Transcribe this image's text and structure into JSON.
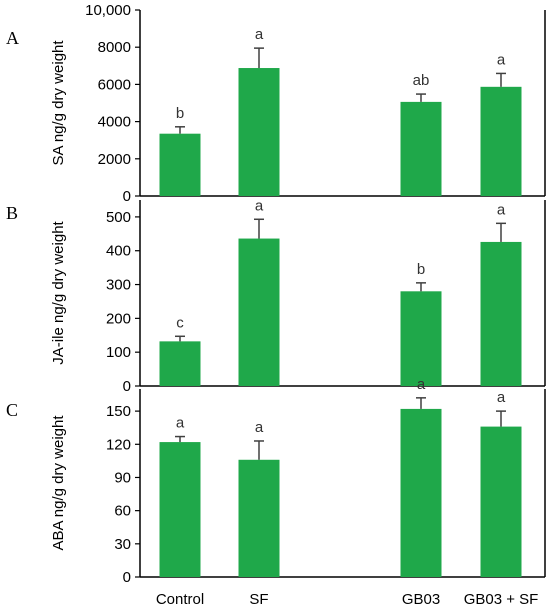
{
  "colors": {
    "bar": "#1fa84a",
    "error": "#404040",
    "axis": "#000000"
  },
  "categories": [
    "Control",
    "SF",
    "",
    "GB03",
    "GB03 + SF"
  ],
  "chart_data": [
    {
      "type": "bar",
      "panel_label": "A",
      "categories": [
        "Control",
        "SF",
        "",
        "GB03",
        "GB03 + SF"
      ],
      "values": [
        3350,
        6880,
        null,
        5060,
        5870
      ],
      "errors": [
        370,
        1070,
        null,
        420,
        720
      ],
      "letters": [
        "b",
        "a",
        "",
        "ab",
        "a"
      ],
      "ylabel": "SA ng/g dry weight",
      "ylim": [
        0,
        10000
      ],
      "yticks": [
        0,
        2000,
        4000,
        6000,
        8000,
        10000
      ],
      "ytick_labels": [
        "0",
        "2000",
        "4000",
        "6000",
        "8000",
        "10,000"
      ]
    },
    {
      "type": "bar",
      "panel_label": "B",
      "categories": [
        "Control",
        "SF",
        "",
        "GB03",
        "GB03 + SF"
      ],
      "values": [
        132,
        436,
        null,
        280,
        426
      ],
      "errors": [
        15,
        57,
        null,
        25,
        55
      ],
      "letters": [
        "c",
        "a",
        "",
        "b",
        "a"
      ],
      "ylabel": "JA-ile  ng/g dry weight",
      "ylim": [
        0,
        550
      ],
      "yticks": [
        0,
        100,
        200,
        300,
        400,
        500
      ],
      "ytick_labels": [
        "0",
        "100",
        "200",
        "300",
        "400",
        "500"
      ]
    },
    {
      "type": "bar",
      "panel_label": "C",
      "categories": [
        "Control",
        "SF",
        "",
        "GB03",
        "GB03 + SF"
      ],
      "values": [
        122,
        106,
        null,
        152,
        136
      ],
      "errors": [
        5,
        17,
        null,
        10,
        14
      ],
      "letters": [
        "a",
        "a",
        "",
        "a",
        "a"
      ],
      "ylabel": "ABA ng/g dry weight",
      "ylim": [
        0,
        170
      ],
      "yticks": [
        0,
        30,
        60,
        90,
        120,
        150
      ],
      "ytick_labels": [
        "0",
        "30",
        "60",
        "90",
        "120",
        "150"
      ]
    }
  ]
}
